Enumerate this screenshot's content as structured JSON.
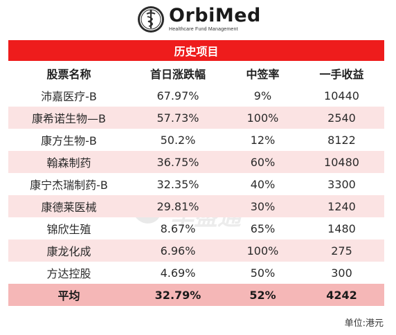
{
  "logo": {
    "name": "OrbiMed",
    "tagline": "Healthcare Fund Management"
  },
  "banner": {
    "title": "历史项目"
  },
  "table": {
    "headers": [
      "股票名称",
      "首日涨跌幅",
      "中签率",
      "一手收益"
    ],
    "rows": [
      [
        "沛嘉医疗-B",
        "67.97%",
        "9%",
        "10440"
      ],
      [
        "康希诺生物—B",
        "57.73%",
        "100%",
        "2540"
      ],
      [
        "康方生物-B",
        "50.2%",
        "12%",
        "8122"
      ],
      [
        "翰森制药",
        "36.75%",
        "60%",
        "10480"
      ],
      [
        "康宁杰瑞制药-B",
        "32.35%",
        "40%",
        "3300"
      ],
      [
        "康德莱医械",
        "29.81%",
        "30%",
        "1240"
      ],
      [
        "锦欣生殖",
        "8.67%",
        "65%",
        "1480"
      ],
      [
        "康龙化成",
        "6.96%",
        "100%",
        "275"
      ],
      [
        "方达控股",
        "4.69%",
        "50%",
        "300"
      ]
    ],
    "average": [
      "平均",
      "32.79%",
      "52%",
      "4242"
    ]
  },
  "footer": {
    "unit": "单位:港元"
  },
  "watermark": {
    "text": "华盛通"
  },
  "colors": {
    "banner": "#ee1c1c",
    "row_shade": "#fbe3e3",
    "average_row": "#f5b7b7"
  }
}
